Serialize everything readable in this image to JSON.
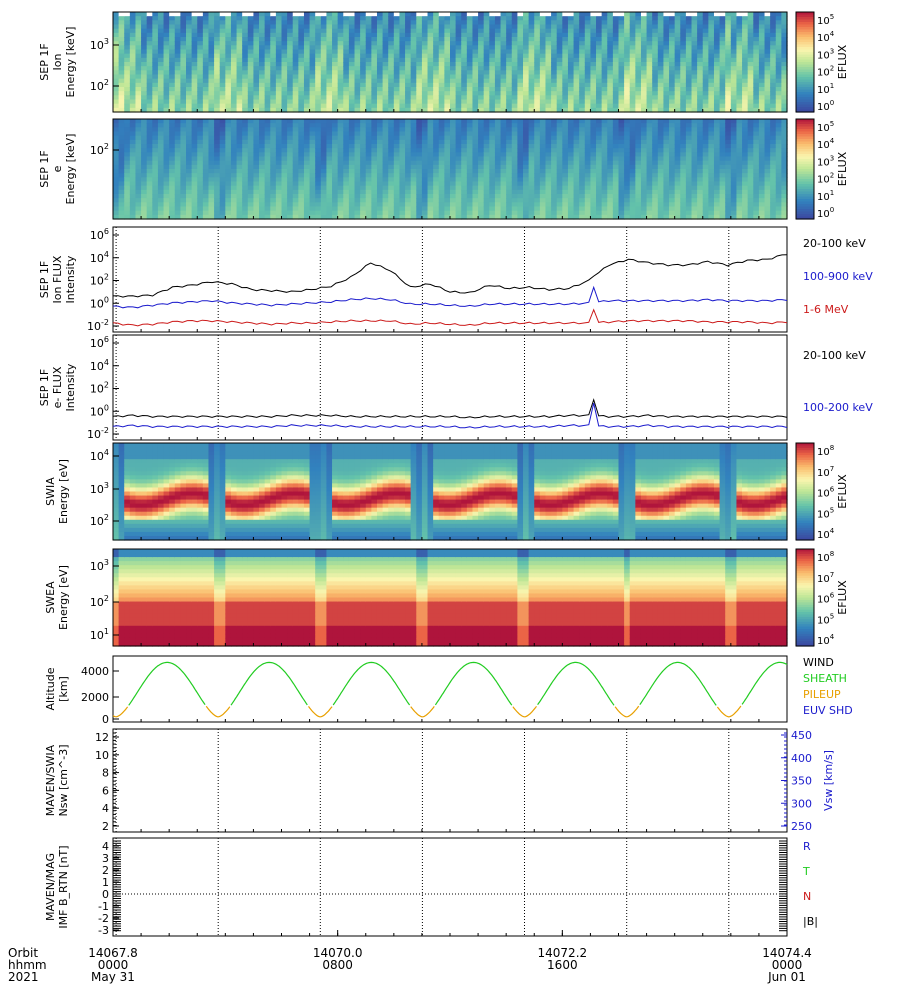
{
  "chart_data": {
    "type": "multi-panel time series",
    "panels": [
      {
        "id": "sep-ion-spec",
        "kind": "spectrogram",
        "ylabel": [
          "SEP 1F",
          "Ion",
          "Energy [keV]"
        ],
        "yticks": [
          "10^3",
          "10^2"
        ],
        "cbar_label": "EFLUX",
        "cbar_ticks": [
          "10^5",
          "10^4",
          "10^3",
          "10^2",
          "10^1",
          "10^0"
        ],
        "palette": "sep"
      },
      {
        "id": "sep-e-spec",
        "kind": "spectrogram",
        "ylabel": [
          "SEP 1F",
          "e",
          "Energy [keV]"
        ],
        "yticks": [
          "10^2"
        ],
        "cbar_label": "EFLUX",
        "cbar_ticks": [
          "10^5",
          "10^4",
          "10^3",
          "10^2",
          "10^1",
          "10^0"
        ],
        "palette": "sep"
      },
      {
        "id": "sep-ion-flux",
        "kind": "line",
        "ylabel": [
          "SEP 1F",
          "Ion FLUX",
          "Intensity"
        ],
        "yticks": [
          "10^6",
          "10^4",
          "10^2",
          "10^0",
          "10^-2"
        ],
        "legend": [
          {
            "label": "20-100 keV",
            "color": "#000000"
          },
          {
            "label": "100-900 keV",
            "color": "#1a1acc"
          },
          {
            "label": "1-6 MeV",
            "color": "#cc1a1a"
          }
        ]
      },
      {
        "id": "sep-e-flux",
        "kind": "line",
        "ylabel": [
          "SEP 1F",
          "e- FLUX",
          "Intensity"
        ],
        "yticks": [
          "10^6",
          "10^4",
          "10^2",
          "10^0",
          "10^-2"
        ],
        "legend": [
          {
            "label": "20-100 keV",
            "color": "#000000"
          },
          {
            "label": "100-200 keV",
            "color": "#1a1acc"
          }
        ]
      },
      {
        "id": "swia-spec",
        "kind": "spectrogram",
        "ylabel": [
          "SWIA",
          "Energy [eV]"
        ],
        "yticks": [
          "10^4",
          "10^3",
          "10^2"
        ],
        "cbar_label": "EFLUX",
        "cbar_ticks": [
          "10^8",
          "10^7",
          "10^6",
          "10^5",
          "10^4"
        ],
        "palette": "spectral"
      },
      {
        "id": "swea-spec",
        "kind": "spectrogram",
        "ylabel": [
          "SWEA",
          "Energy [eV]"
        ],
        "yticks": [
          "10^3",
          "10^2",
          "10^1"
        ],
        "cbar_label": "EFLUX",
        "cbar_ticks": [
          "10^8",
          "10^7",
          "10^6",
          "10^5",
          "10^4"
        ],
        "palette": "spectral"
      },
      {
        "id": "altitude",
        "kind": "line",
        "ylabel": [
          "Altitude",
          "[km]"
        ],
        "yticks": [
          "4000",
          "2000",
          "0"
        ],
        "ylim": [
          -250,
          4900
        ],
        "legend": [
          {
            "label": "WIND",
            "color": "#000000"
          },
          {
            "label": "SHEATH",
            "color": "#22cc22"
          },
          {
            "label": "PILEUP",
            "color": "#e8a000"
          },
          {
            "label": "EUV SHD",
            "color": "#1a1acc"
          }
        ]
      },
      {
        "id": "swia-moments",
        "kind": "line",
        "ylabel": [
          "MAVEN/SWIA",
          "Nsw [cm^-3]"
        ],
        "yticks": [
          "12",
          "10",
          "8",
          "6",
          "4",
          "2"
        ],
        "right_ylabel": "Vsw [km/s]",
        "right_yticks": [
          "450",
          "400",
          "350",
          "300",
          "250"
        ]
      },
      {
        "id": "mag",
        "kind": "line",
        "ylabel": [
          "MAVEN/MAG",
          "IMF B_RTN [nT]"
        ],
        "yticks": [
          "4",
          "3",
          "2",
          "1",
          "0",
          "-1",
          "-2",
          "-3"
        ],
        "legend": [
          {
            "label": "R",
            "color": "#1a1acc"
          },
          {
            "label": "T",
            "color": "#22cc22"
          },
          {
            "label": "N",
            "color": "#cc1a1a"
          },
          {
            "label": "|B|",
            "color": "#000000"
          }
        ]
      }
    ],
    "orbit_period_orbits": 1,
    "periapsis_orbits": [
      14067.83,
      14068.83,
      14069.83,
      14070.83,
      14071.83,
      14072.83,
      14073.83
    ],
    "orbit_lines": [
      14067.83,
      14068.83,
      14069.83,
      14070.83,
      14071.83,
      14072.83,
      14073.83
    ],
    "time_axis": {
      "row_labels": [
        "Orbit",
        "hhmm",
        "2021"
      ],
      "ticks": [
        {
          "orbit": "14067.8",
          "hhmm": "0000",
          "date": "May 31"
        },
        {
          "orbit": "14070.0",
          "hhmm": "0800",
          "date": ""
        },
        {
          "orbit": "14072.2",
          "hhmm": "1600",
          "date": ""
        },
        {
          "orbit": "14074.4",
          "hhmm": "0000",
          "date": "Jun 01"
        }
      ],
      "orbit_range": [
        14067.8,
        14074.4
      ]
    },
    "sep_ion_flux_series": {
      "20-100 keV": [
        0.2,
        0.2,
        0.3,
        1.0,
        1.2,
        1.5,
        1.3,
        0.8,
        0.7,
        0.6,
        0.8,
        1.1,
        1.9,
        3.2,
        2.5,
        1.0,
        1.3,
        0.6,
        0.5,
        1.2,
        0.9,
        1.0,
        0.8,
        0.9,
        1.6,
        3.0,
        3.5,
        3.2,
        3.0,
        3.0,
        3.3,
        3.0,
        3.4,
        3.5,
        4.0
      ],
      "100-900 keV": [
        -0.7,
        -0.8,
        -0.6,
        -0.4,
        -0.3,
        -0.2,
        -0.4,
        -0.5,
        -0.6,
        -0.5,
        -0.4,
        -0.3,
        -0.1,
        0,
        -0.1,
        -0.5,
        -0.5,
        -0.6,
        -0.7,
        -0.5,
        -0.5,
        -0.5,
        -0.5,
        -0.5,
        -0.4,
        -0.2,
        -0.2,
        -0.2,
        -0.2,
        -0.2,
        -0.1,
        -0.2,
        -0.2,
        -0.2,
        -0.1
      ],
      "1-6 MeV": [
        -2.2,
        -2.4,
        -2.3,
        -2.1,
        -2.0,
        -2.0,
        -2.1,
        -2.2,
        -2.3,
        -2.2,
        -2.2,
        -2.1,
        -2.0,
        -2.0,
        -2.0,
        -2.3,
        -2.2,
        -2.3,
        -2.4,
        -2.2,
        -2.2,
        -2.2,
        -2.2,
        -2.2,
        -2.2,
        -2.1,
        -2.0,
        -2.0,
        -2.0,
        -2.0,
        -2.1,
        -2.1,
        -2.1,
        -2.2,
        -2.1
      ]
    },
    "sep_e_flux_series": {
      "20-100 keV": [
        -0.9,
        -0.8,
        -0.9,
        -0.9,
        -0.9,
        -0.9,
        -0.9,
        -0.9,
        -0.9,
        -0.8,
        -0.8,
        -0.8,
        -0.9,
        -0.9,
        -0.9,
        -0.9,
        -0.9,
        -0.9,
        -1.0,
        -0.9,
        -0.9,
        -0.9,
        -0.9,
        -0.8,
        -0.8,
        -0.9,
        -0.9,
        -0.8,
        -0.9,
        -0.9,
        -0.9,
        -0.9,
        -0.9,
        -0.9,
        -0.9
      ],
      "100-200 keV": [
        -1.8,
        -1.7,
        -1.8,
        -1.8,
        -1.8,
        -1.8,
        -1.8,
        -1.8,
        -1.8,
        -1.7,
        -1.7,
        -1.7,
        -1.8,
        -1.8,
        -1.8,
        -1.8,
        -1.8,
        -1.8,
        -1.9,
        -1.8,
        -1.8,
        -1.8,
        -1.8,
        -1.7,
        -1.7,
        -1.8,
        -1.8,
        -1.7,
        -1.8,
        -1.8,
        -1.8,
        -1.8,
        -1.8,
        -1.8,
        -1.8
      ]
    },
    "spike_orbit": 14072.52
  }
}
